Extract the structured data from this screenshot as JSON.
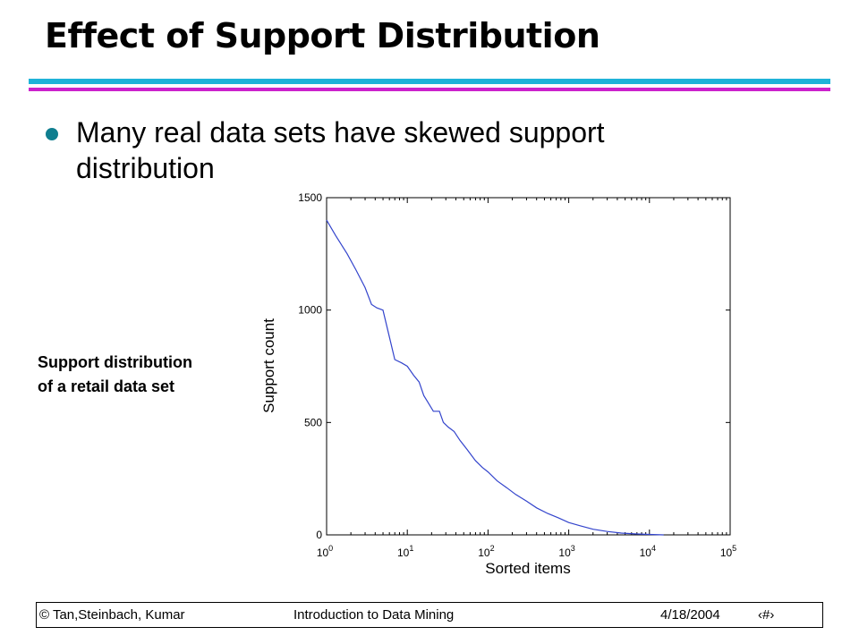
{
  "slide": {
    "title": "Effect of Support Distribution",
    "bullet": "Many real data sets have skewed support distribution",
    "caption": "Support distribution of a retail data set"
  },
  "footer": {
    "left": "© Tan,Steinbach, Kumar",
    "center": "Introduction to Data Mining",
    "date": "4/18/2004",
    "page": "‹#›"
  },
  "colors": {
    "title_rule_top": "#1fb3d8",
    "title_rule_bottom": "#cc22cc",
    "bullet": "#0f7e8f",
    "curve": "#3344cc"
  },
  "chart_data": {
    "type": "line",
    "xlabel": "Sorted items",
    "ylabel": "Support count",
    "xscale": "log",
    "xlim": [
      1,
      100000
    ],
    "ylim": [
      0,
      1500
    ],
    "x_ticks": [
      1,
      10,
      100,
      1000,
      10000,
      100000
    ],
    "y_ticks": [
      0,
      500,
      1000,
      1500
    ],
    "y_tick_labels": [
      "0",
      "500",
      "1000",
      "1500"
    ],
    "grid": false,
    "series": [
      {
        "x": [
          1,
          1.3,
          1.8,
          2.3,
          3,
          3.6,
          4.2,
          5,
          6,
          7,
          8.5,
          10,
          12,
          14,
          16,
          18,
          21,
          25,
          28,
          32,
          38,
          45,
          55,
          70,
          85,
          100,
          130,
          170,
          220,
          300,
          400,
          550,
          750,
          1000,
          1400,
          2000,
          3000,
          4500,
          7000,
          10000,
          15000
        ],
        "y": [
          1400,
          1330,
          1250,
          1180,
          1100,
          1025,
          1010,
          1000,
          880,
          780,
          765,
          750,
          710,
          680,
          620,
          590,
          550,
          550,
          500,
          480,
          460,
          420,
          380,
          330,
          300,
          280,
          240,
          210,
          180,
          150,
          120,
          95,
          75,
          55,
          40,
          25,
          15,
          8,
          4,
          2,
          0
        ]
      }
    ]
  }
}
